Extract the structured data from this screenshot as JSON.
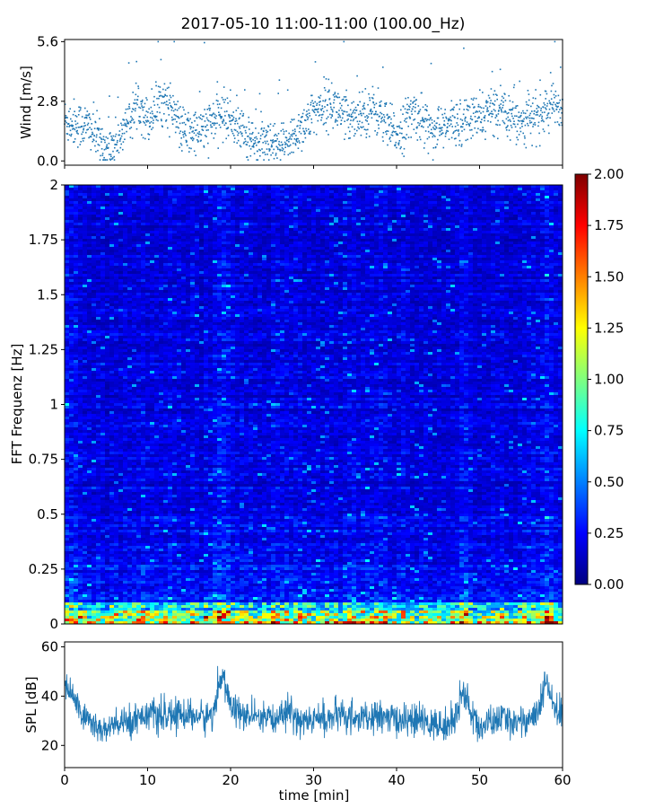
{
  "title": "2017-05-10 11:00-11:00 (100.00_Hz)",
  "chart_data": [
    {
      "type": "scatter",
      "name": "wind",
      "ylabel": "Wind [m/s]",
      "xlim": [
        0,
        60
      ],
      "ylim": [
        -0.2,
        5.7
      ],
      "yticks": [
        "0.0",
        "2.8",
        "5.6"
      ],
      "ytick_values": [
        0.0,
        2.8,
        5.6
      ],
      "color": "#1f77b4",
      "x": [
        0,
        1,
        2,
        3,
        4,
        5,
        6,
        7,
        8,
        9,
        10,
        11,
        12,
        13,
        14,
        15,
        16,
        17,
        18,
        19,
        20,
        21,
        22,
        23,
        24,
        25,
        26,
        27,
        28,
        29,
        30,
        31,
        32,
        33,
        34,
        35,
        36,
        37,
        38,
        39,
        40,
        41,
        42,
        43,
        44,
        45,
        46,
        47,
        48,
        49,
        50,
        51,
        52,
        53,
        54,
        55,
        56,
        57,
        58,
        59,
        60
      ],
      "y": [
        1.9,
        1.8,
        1.7,
        1.6,
        1.0,
        0.6,
        0.8,
        1.3,
        2.1,
        2.8,
        1.9,
        2.6,
        2.9,
        2.4,
        1.5,
        1.3,
        1.4,
        1.6,
        1.9,
        2.2,
        2.0,
        1.6,
        1.1,
        0.9,
        0.8,
        0.6,
        0.7,
        0.8,
        1.4,
        1.8,
        2.2,
        2.6,
        2.7,
        2.4,
        2.0,
        2.2,
        2.3,
        2.4,
        2.2,
        1.5,
        1.3,
        1.7,
        2.3,
        2.0,
        1.6,
        1.5,
        1.6,
        1.8,
        1.9,
        2.0,
        2.0,
        2.3,
        2.5,
        2.4,
        2.2,
        1.9,
        2.0,
        2.1,
        2.4,
        2.6,
        2.5
      ]
    },
    {
      "type": "heatmap",
      "name": "spectrogram",
      "ylabel": "FFT Frequenz [Hz]",
      "xlim": [
        0,
        60
      ],
      "ylim": [
        0,
        2
      ],
      "yticks": [
        "0",
        "0.25",
        "0.5",
        "0.75",
        "1",
        "1.25",
        "1.5",
        "1.75",
        "2"
      ],
      "ytick_values": [
        0,
        0.25,
        0.5,
        0.75,
        1.0,
        1.25,
        1.5,
        1.75,
        2.0
      ],
      "colormap": "jet",
      "clim": [
        0.0,
        2.0
      ],
      "colorbar_ticks": [
        "0.00",
        "0.25",
        "0.50",
        "0.75",
        "1.00",
        "1.25",
        "1.50",
        "1.75",
        "2.00"
      ],
      "colorbar_tick_values": [
        0,
        0.25,
        0.5,
        0.75,
        1.0,
        1.25,
        1.5,
        1.75,
        2.0
      ],
      "low_freq_band_hz": 0.1,
      "typical_level": 0.2
    },
    {
      "type": "line",
      "name": "spl",
      "ylabel": "SPL [dB]",
      "xlabel": "time [min]",
      "xlim": [
        0,
        60
      ],
      "ylim": [
        11,
        62
      ],
      "yticks": [
        "20",
        "40",
        "60"
      ],
      "ytick_values": [
        20,
        40,
        60
      ],
      "xticks": [
        "0",
        "10",
        "20",
        "30",
        "40",
        "50",
        "60"
      ],
      "xtick_values": [
        0,
        10,
        20,
        30,
        40,
        50,
        60
      ],
      "color": "#1f77b4",
      "x": [
        0,
        1,
        2,
        3,
        4,
        5,
        6,
        7,
        8,
        9,
        10,
        11,
        12,
        13,
        14,
        15,
        16,
        17,
        18,
        19,
        20,
        21,
        22,
        23,
        24,
        25,
        26,
        27,
        28,
        29,
        30,
        31,
        32,
        33,
        34,
        35,
        36,
        37,
        38,
        39,
        40,
        41,
        42,
        43,
        44,
        45,
        46,
        47,
        48,
        49,
        50,
        51,
        52,
        53,
        54,
        55,
        56,
        57,
        58,
        59,
        60
      ],
      "y": [
        45,
        40,
        33,
        30,
        27,
        26,
        28,
        29,
        30,
        32,
        33,
        32,
        31,
        32,
        33,
        32,
        32,
        31,
        34,
        50,
        36,
        33,
        32,
        31,
        30,
        30,
        33,
        34,
        31,
        30,
        30,
        31,
        31,
        32,
        31,
        32,
        30,
        31,
        32,
        31,
        30,
        31,
        30,
        30,
        29,
        28,
        28,
        30,
        43,
        33,
        27,
        29,
        30,
        31,
        30,
        30,
        31,
        32,
        46,
        35,
        33
      ]
    }
  ]
}
